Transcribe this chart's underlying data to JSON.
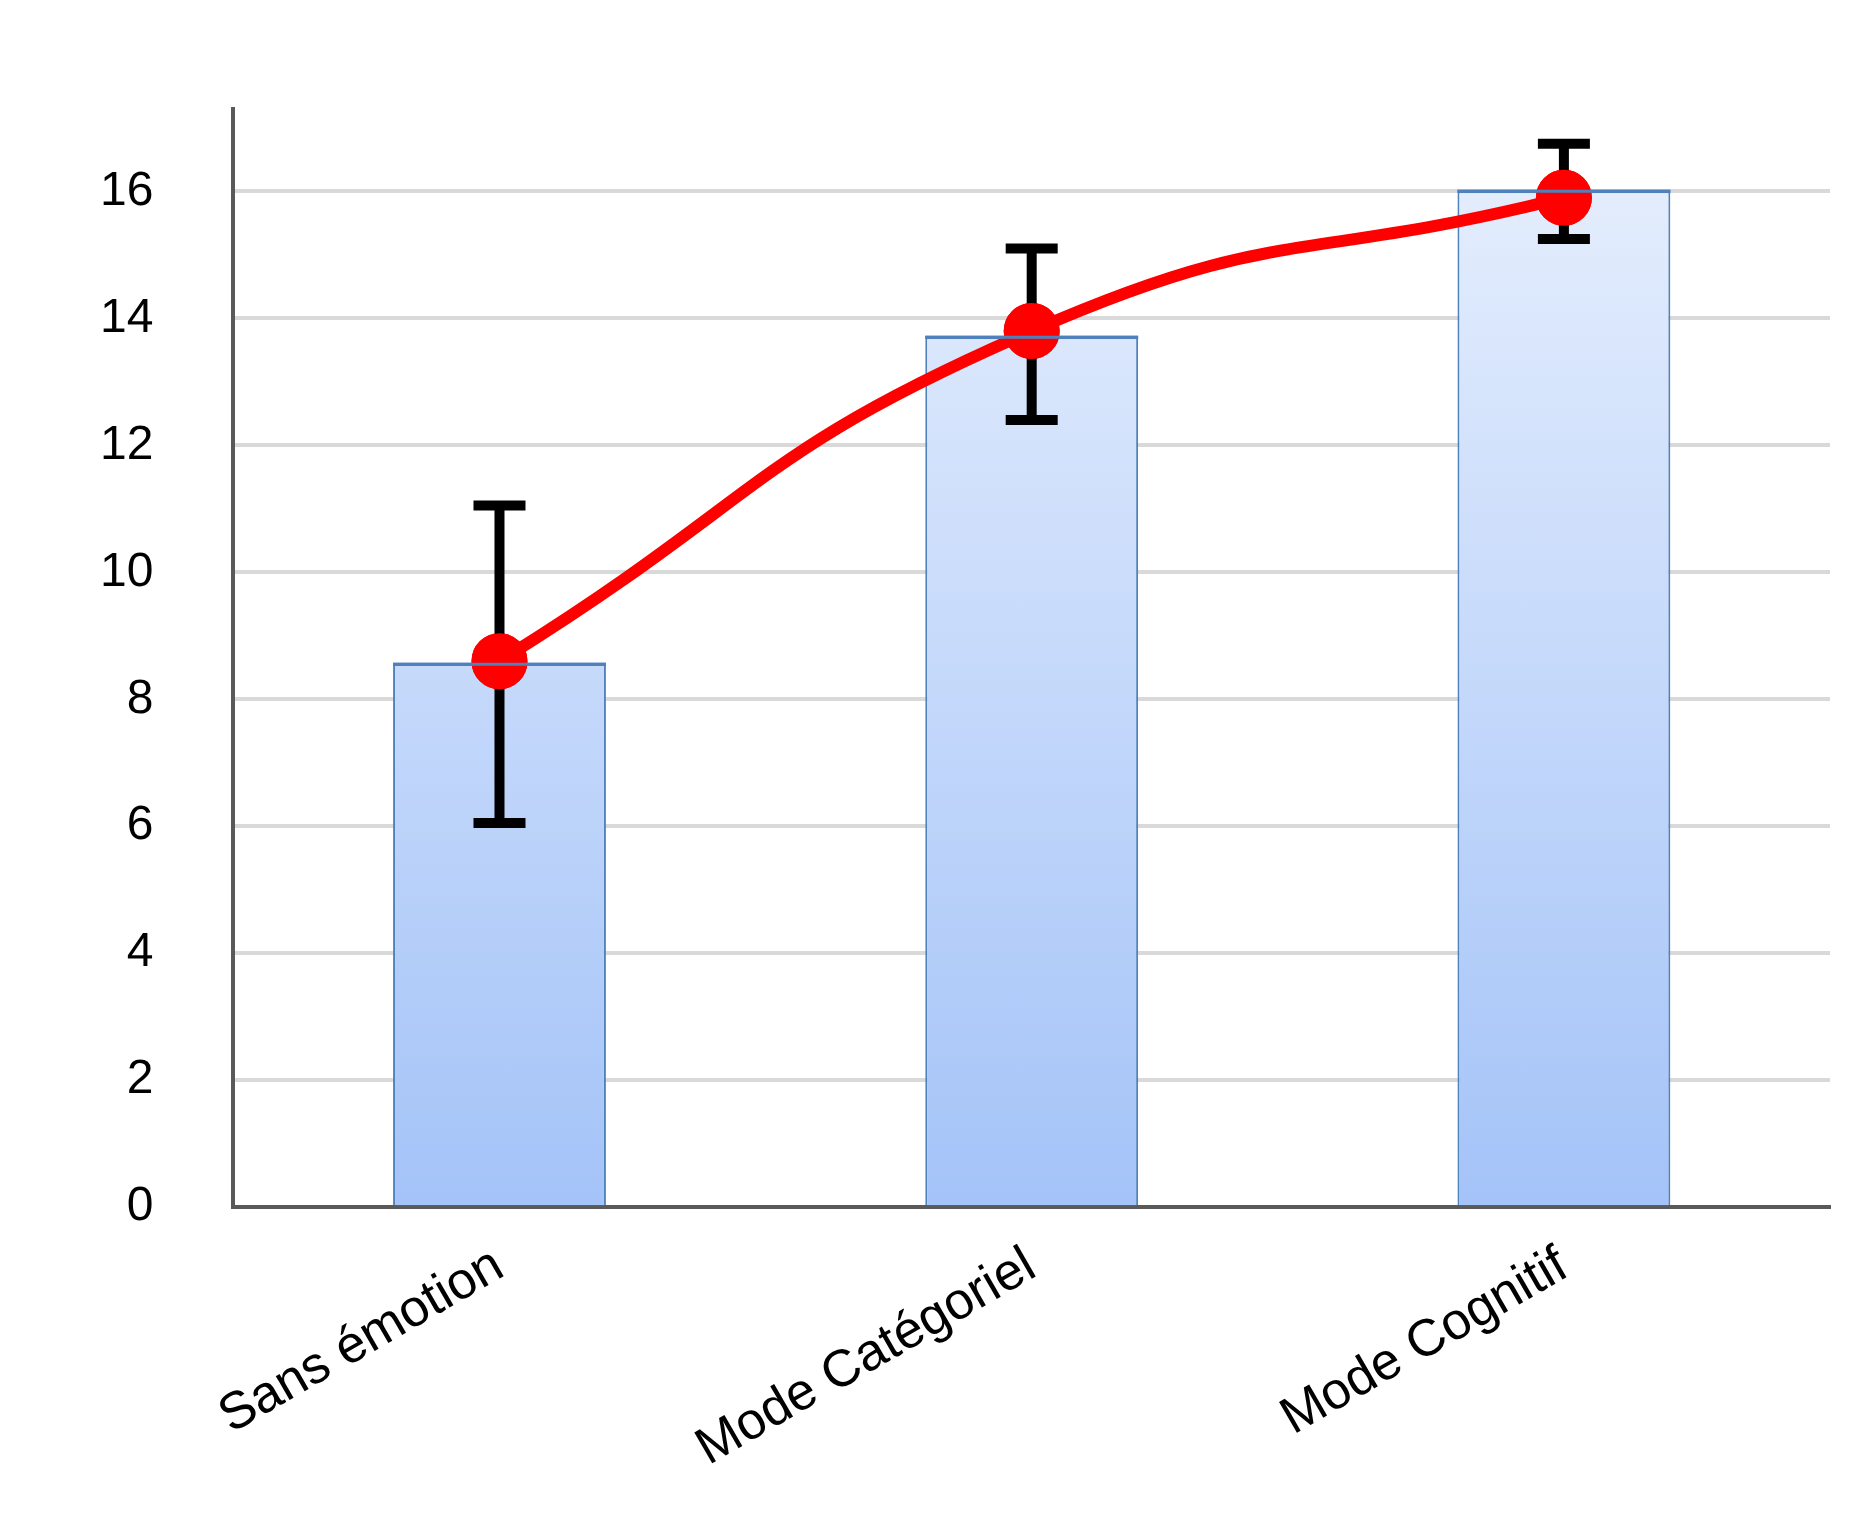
{
  "chart_data": {
    "type": "bar",
    "categories": [
      "Sans émotion",
      "Mode Catégoriel",
      "Mode Cognitif"
    ],
    "series": [
      {
        "color": "#a4c3f8",
        "values": [
          8.55,
          13.7,
          16.0
        ]
      },
      {
        "type": "line",
        "color": "#ff0000",
        "values": [
          8.6,
          13.8,
          15.9
        ],
        "errors": [
          [
            6.05,
            11.05
          ],
          [
            12.4,
            15.1
          ],
          [
            15.25,
            16.75
          ]
        ],
        "marker": "circle",
        "line_style": "solid"
      }
    ],
    "ylim": [
      0,
      17.3
    ],
    "yticks": [
      0,
      2,
      4,
      6,
      8,
      10,
      12,
      14,
      16
    ],
    "grid": "y",
    "legend": false
  }
}
